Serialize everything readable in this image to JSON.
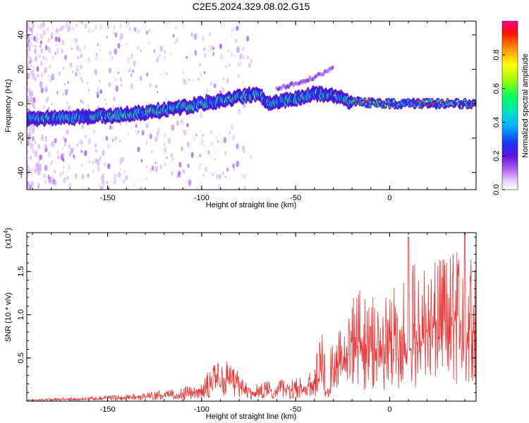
{
  "title": "C2E5.2024.329.08.02.G15",
  "chart_data": [
    {
      "type": "heatmap",
      "name": "spectrogram",
      "xlabel": "Height of straight line (km)",
      "ylabel": "Frequency (Hz)",
      "xlim": [
        -193,
        46
      ],
      "ylim": [
        -50,
        48
      ],
      "xticks": [
        -150,
        -100,
        -50,
        0
      ],
      "yticks": [
        -40,
        -20,
        0,
        20,
        40
      ],
      "colorbar": {
        "label": "Normalized spectral amplitude",
        "range": [
          0,
          1
        ],
        "ticks": [
          0.0,
          0.2,
          0.4,
          0.6,
          0.8
        ],
        "colormap": [
          "#ffffff",
          "#c8a0f0",
          "#8a2be2",
          "#3a0dd8",
          "#1040ff",
          "#00c8ff",
          "#00ff80",
          "#a0ff00",
          "#ffff00",
          "#ff8000",
          "#ff0000",
          "#ff0080"
        ]
      },
      "ridge": [
        {
          "x": -190,
          "y": -9
        },
        {
          "x": -170,
          "y": -8
        },
        {
          "x": -150,
          "y": -7
        },
        {
          "x": -130,
          "y": -5
        },
        {
          "x": -110,
          "y": -2
        },
        {
          "x": -90,
          "y": 2
        },
        {
          "x": -70,
          "y": 6
        },
        {
          "x": -65,
          "y": 0
        },
        {
          "x": -50,
          "y": 3
        },
        {
          "x": -40,
          "y": 6
        },
        {
          "x": -30,
          "y": 5
        },
        {
          "x": -20,
          "y": 1
        },
        {
          "x": 0,
          "y": 0
        },
        {
          "x": 20,
          "y": 0
        },
        {
          "x": 46,
          "y": 0
        }
      ],
      "secondary": [
        {
          "x": -60,
          "y": 9
        },
        {
          "x": -45,
          "y": 13
        },
        {
          "x": -35,
          "y": 18
        },
        {
          "x": -30,
          "y": 21
        }
      ]
    },
    {
      "type": "line",
      "name": "snr",
      "xlabel": "Height of straight line (km)",
      "ylabel": "SNR (10 * v/v)",
      "y_multiplier": "(x10",
      "y_multiplier_exp": "4",
      "y_multiplier_close": ")",
      "xlim": [
        -193,
        46
      ],
      "ylim": [
        0,
        1.95
      ],
      "xticks": [
        -150,
        -100,
        -50,
        0
      ],
      "yticks": [
        0.5,
        1.0,
        1.5
      ],
      "ytick_labels": [
        "0.5",
        "1.0",
        "1.5"
      ],
      "color": "#ee3333",
      "envelope": [
        {
          "x": -193,
          "y": 0.02
        },
        {
          "x": -160,
          "y": 0.05
        },
        {
          "x": -130,
          "y": 0.1
        },
        {
          "x": -110,
          "y": 0.16
        },
        {
          "x": -100,
          "y": 0.22
        },
        {
          "x": -95,
          "y": 0.42
        },
        {
          "x": -88,
          "y": 0.5
        },
        {
          "x": -82,
          "y": 0.38
        },
        {
          "x": -75,
          "y": 0.2
        },
        {
          "x": -60,
          "y": 0.25
        },
        {
          "x": -45,
          "y": 0.3
        },
        {
          "x": -40,
          "y": 0.45
        },
        {
          "x": -34,
          "y": 1.05
        },
        {
          "x": -30,
          "y": 0.65
        },
        {
          "x": -25,
          "y": 0.9
        },
        {
          "x": -18,
          "y": 1.3
        },
        {
          "x": -10,
          "y": 1.25
        },
        {
          "x": -5,
          "y": 1.15
        },
        {
          "x": 5,
          "y": 1.45
        },
        {
          "x": 10,
          "y": 1.6
        },
        {
          "x": 20,
          "y": 1.55
        },
        {
          "x": 30,
          "y": 1.7
        },
        {
          "x": 40,
          "y": 1.8
        },
        {
          "x": 46,
          "y": 1.75
        }
      ],
      "dips": [
        {
          "x": -33,
          "y": 0.05
        },
        {
          "x": 10,
          "y": 0.55
        }
      ],
      "spikes": [
        {
          "x": 10,
          "y": 1.9
        },
        {
          "x": 40,
          "y": 1.95
        }
      ]
    }
  ]
}
